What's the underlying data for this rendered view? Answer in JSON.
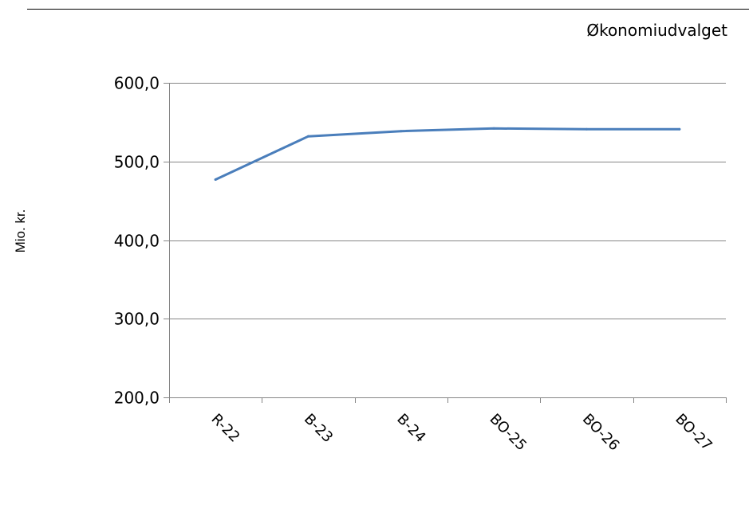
{
  "header": {
    "label": "Økonomiudvalget"
  },
  "chart_data": {
    "type": "line",
    "title": "Økonomiudvalget",
    "xlabel": "",
    "ylabel": "Mio. kr.",
    "categories": [
      "R-22",
      "B-23",
      "B-24",
      "BO-25",
      "BO-26",
      "BO-27"
    ],
    "values": [
      477.0,
      532.0,
      538.5,
      542.0,
      541.0,
      541.0
    ],
    "ylim": [
      200,
      600
    ],
    "yticks": [
      200,
      300,
      400,
      500,
      600
    ],
    "ytick_labels": [
      "200,0",
      "300,0",
      "400,0",
      "500,0",
      "600,0"
    ],
    "grid": true,
    "legend": "none",
    "line_color": "#4a7ebb",
    "grid_color": "#868686",
    "axis_color": "#868686"
  }
}
